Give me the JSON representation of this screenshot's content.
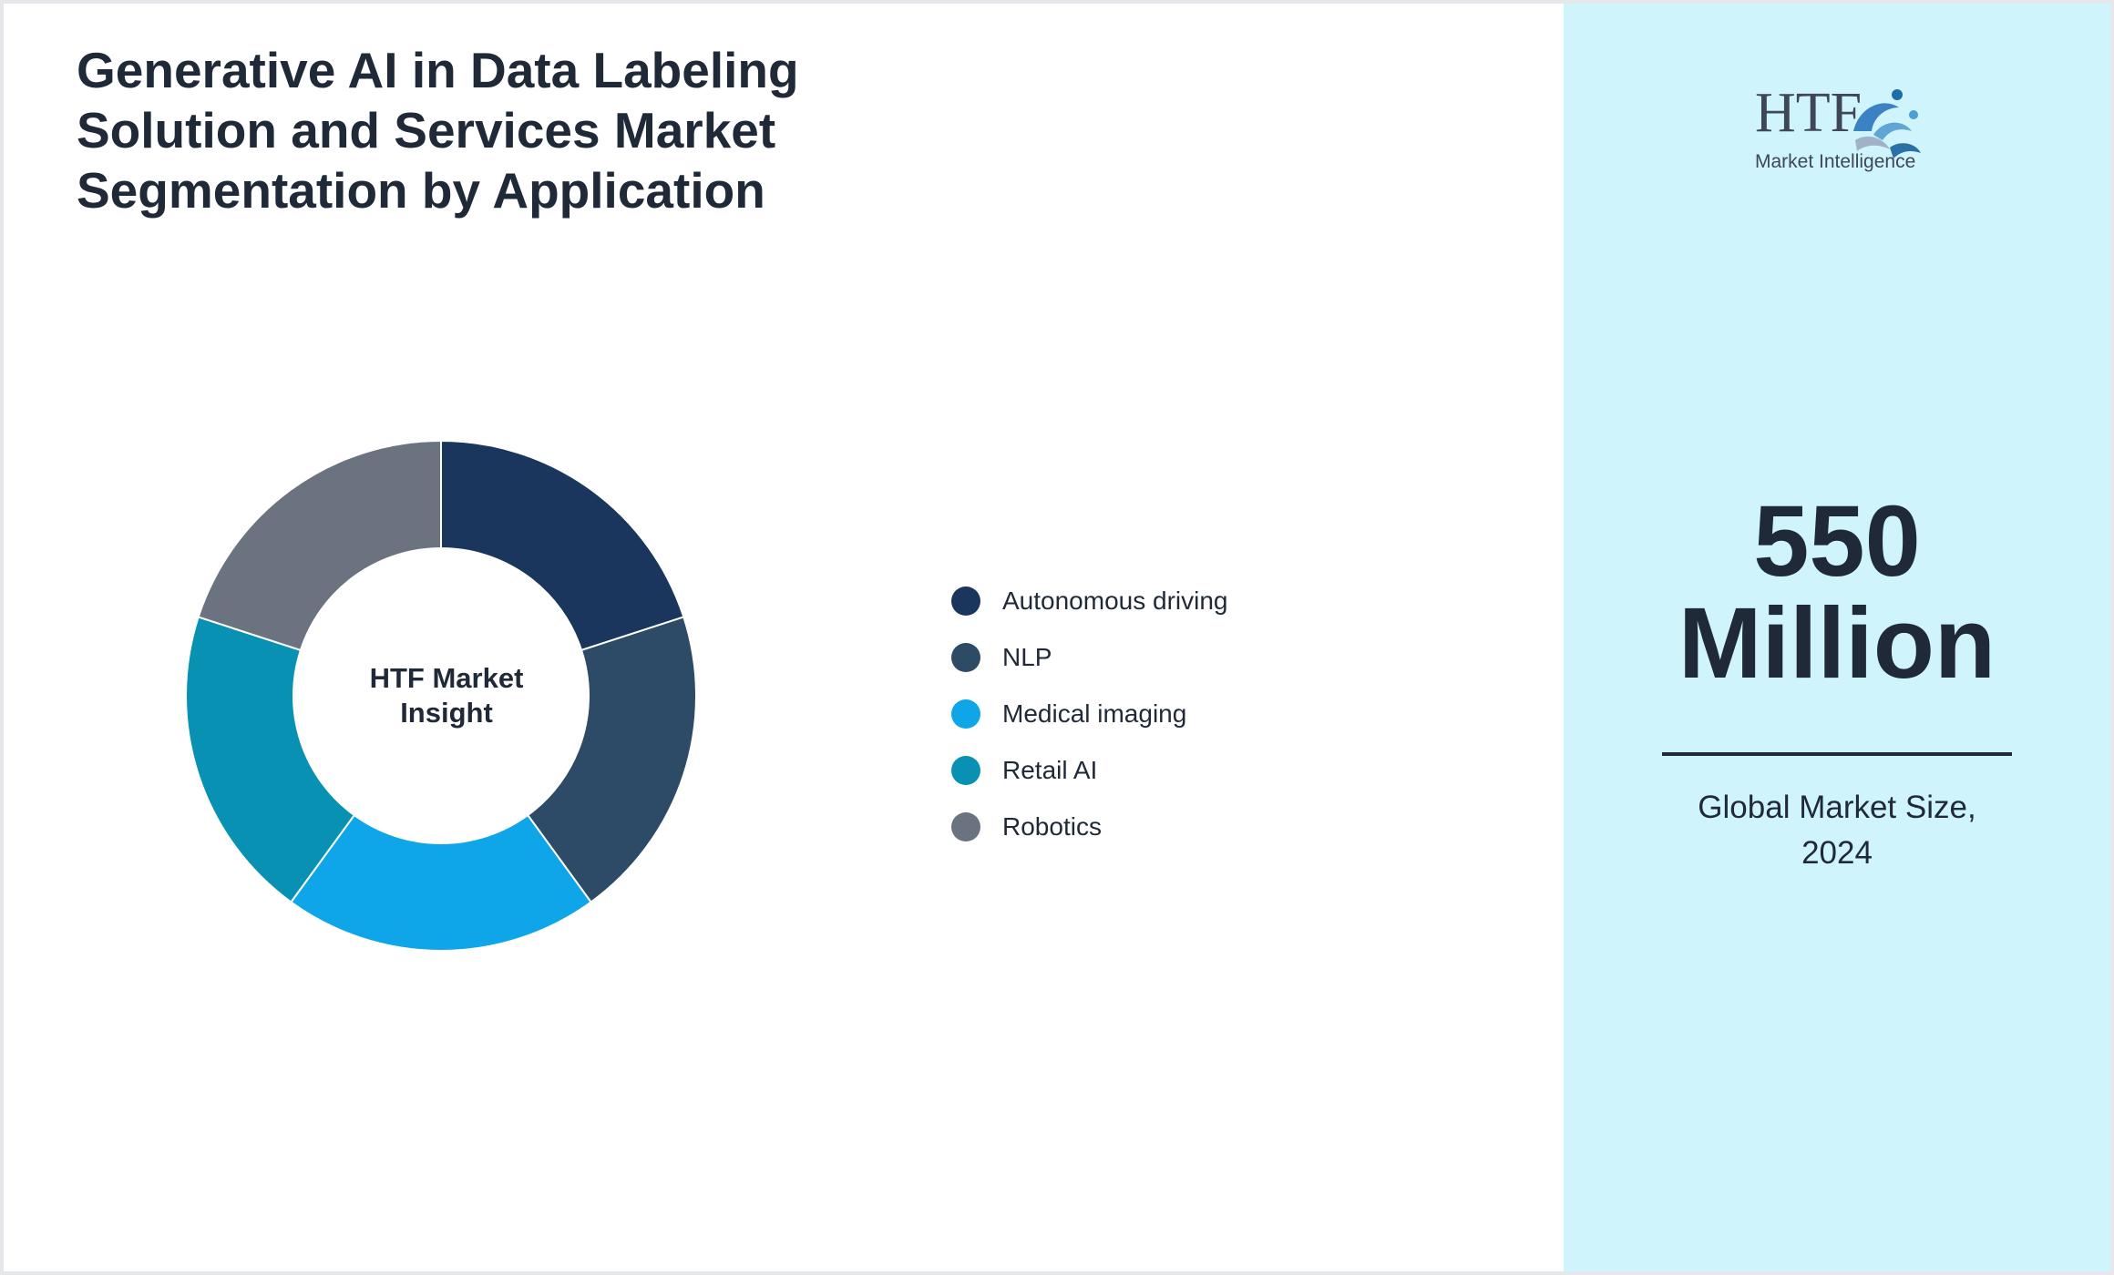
{
  "title": "Generative AI in Data Labeling Solution and Services Market Segmentation by Application",
  "center_label_lines": [
    "HTF Market",
    "Insight"
  ],
  "chart_data": {
    "type": "pie",
    "donut": true,
    "title": "Generative AI in Data Labeling Solution and Services Market Segmentation by Application",
    "categories": [
      "Autonomous driving",
      "NLP",
      "Medical imaging",
      "Retail AI",
      "Robotics"
    ],
    "values": [
      20,
      20,
      20,
      20,
      20
    ],
    "colors": [
      "#1b365d",
      "#2d4a66",
      "#0ea5e9",
      "#0891b2",
      "#6b7280"
    ],
    "legend_position": "right"
  },
  "legend": [
    {
      "label": "Autonomous driving",
      "color": "#1b365d"
    },
    {
      "label": "NLP",
      "color": "#2d4a66"
    },
    {
      "label": "Medical imaging",
      "color": "#0ea5e9"
    },
    {
      "label": "Retail AI",
      "color": "#0891b2"
    },
    {
      "label": "Robotics",
      "color": "#6b7280"
    }
  ],
  "logo": {
    "main": "HTF",
    "sub": "Market Intelligence"
  },
  "stat": {
    "value_line1": "550",
    "value_line2": "Million",
    "caption_line1": "Global Market Size,",
    "caption_line2": "2024"
  },
  "colors": {
    "side_panel": "#cff4fc",
    "text": "#1f2937"
  }
}
